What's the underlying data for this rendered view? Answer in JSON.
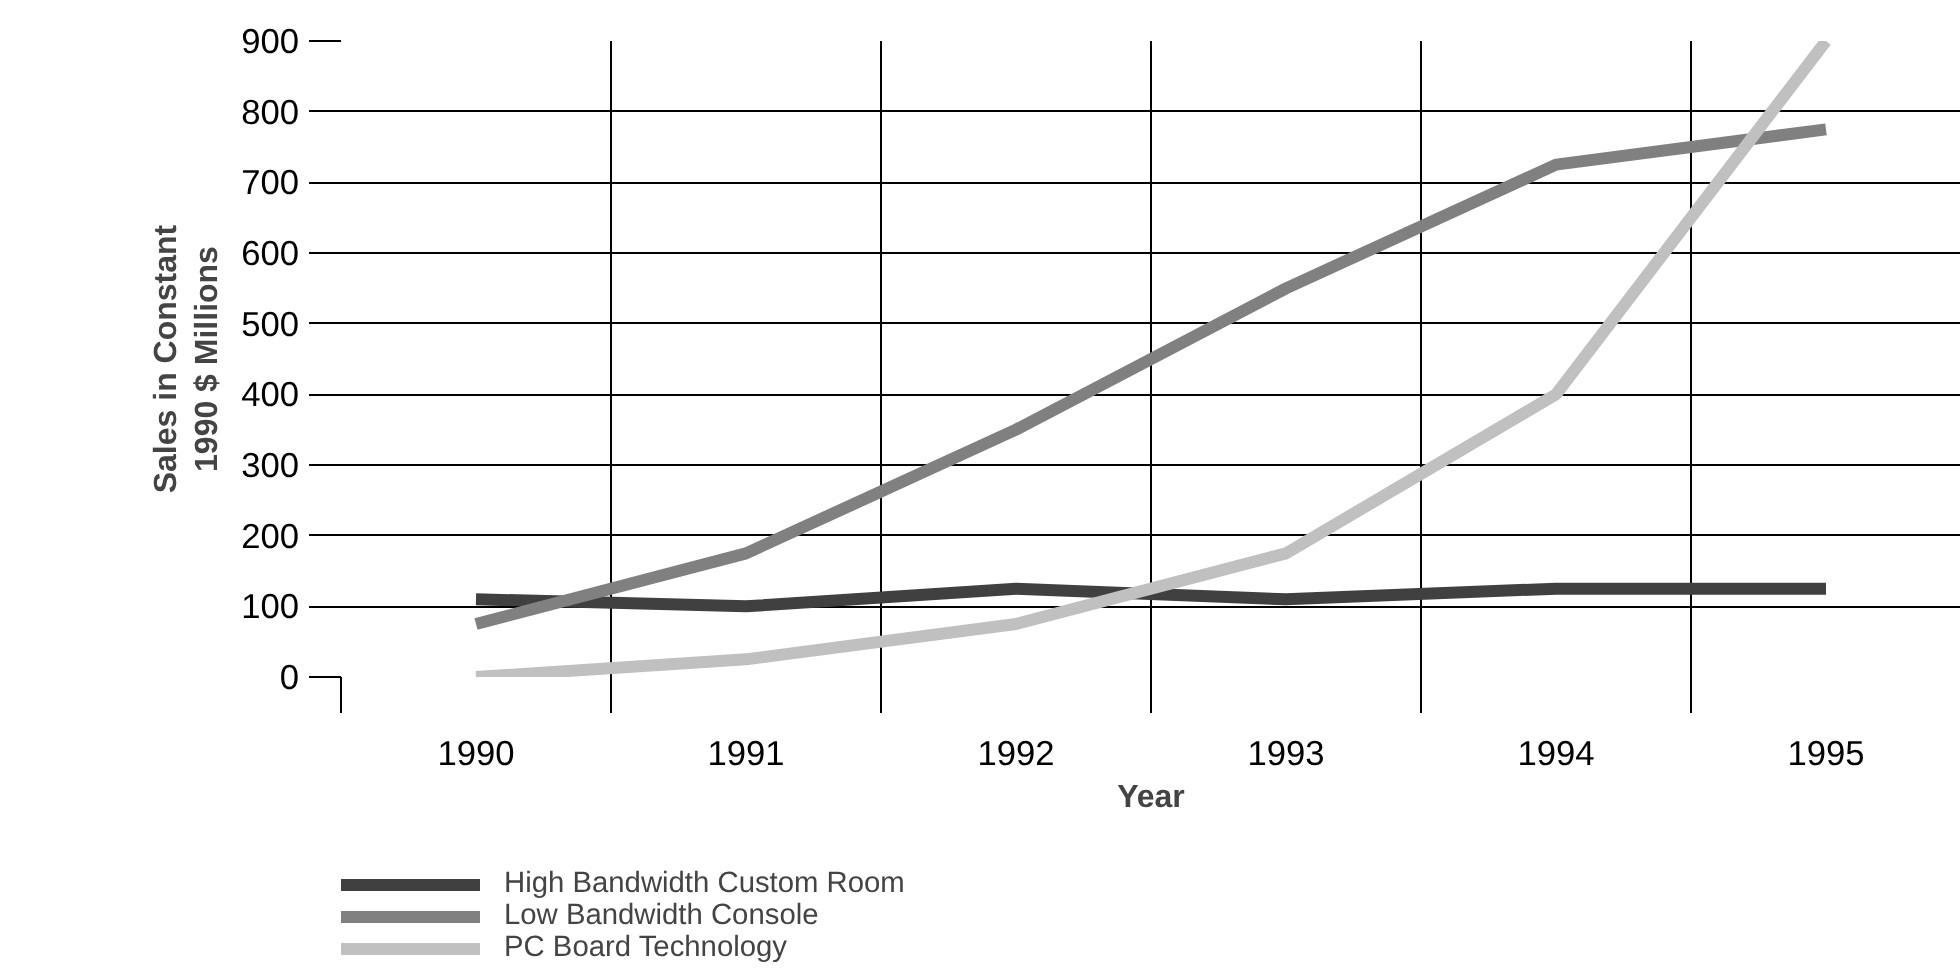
{
  "chart_data": {
    "type": "line",
    "xlabel": "Year",
    "ylabel": "Sales in Constant\n1990 $ Millions",
    "categories": [
      "1990",
      "1991",
      "1992",
      "1993",
      "1994",
      "1995"
    ],
    "series": [
      {
        "name": "High Bandwidth Custom Room",
        "color": "#404040",
        "values": [
          110,
          100,
          125,
          110,
          125,
          125
        ]
      },
      {
        "name": "Low Bandwidth Console",
        "color": "#808080",
        "values": [
          75,
          175,
          350,
          550,
          725,
          775
        ]
      },
      {
        "name": "PC Board Technology",
        "color": "#c0c0c0",
        "values": [
          0,
          25,
          75,
          175,
          400,
          900
        ]
      }
    ],
    "ylim": [
      0,
      900
    ],
    "yticks": [
      0,
      100,
      200,
      300,
      400,
      500,
      600,
      700,
      800,
      900
    ],
    "grid": true,
    "legend": "bottom left",
    "marker": "none",
    "line_style": "solid"
  }
}
